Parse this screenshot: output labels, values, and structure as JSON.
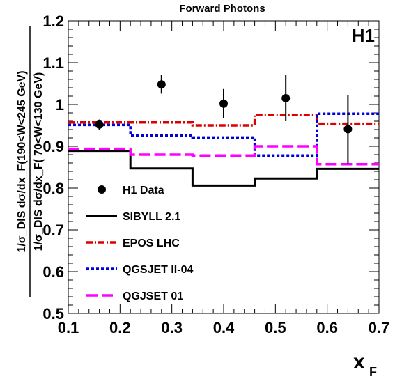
{
  "chart_data": {
    "type": "line",
    "title": "Forward Photons",
    "badge": "H1",
    "xlabel_main": "x",
    "xlabel_sub": "F",
    "ylabel_numerator": "1/σ_DIS dσ/dx_F(190<W<245 GeV)",
    "ylabel_denominator": "1/σ_DIS dσ/dx_F( 70<W<130 GeV)",
    "xlim": [
      0.1,
      0.7
    ],
    "ylim": [
      0.5,
      1.2
    ],
    "x_ticks": [
      "0.1",
      "0.2",
      "0.3",
      "0.4",
      "0.5",
      "0.6",
      "0.7"
    ],
    "y_ticks": [
      "0.5",
      "0.6",
      "0.7",
      "0.8",
      "0.9",
      "1",
      "1.1",
      "1.2"
    ],
    "bin_edges": [
      0.1,
      0.22,
      0.34,
      0.46,
      0.58,
      0.7
    ],
    "data": {
      "name": "H1 Data",
      "color": "#000000",
      "x": [
        0.16,
        0.28,
        0.4,
        0.52,
        0.64
      ],
      "y": [
        0.952,
        1.048,
        1.002,
        1.015,
        0.941
      ],
      "err": [
        0.012,
        0.022,
        0.035,
        0.055,
        0.082
      ]
    },
    "series": [
      {
        "name": "SIBYLL 2.1",
        "color": "#000000",
        "dash": "solid",
        "values": [
          0.889,
          0.847,
          0.806,
          0.823,
          0.846
        ]
      },
      {
        "name": "EPOS LHC",
        "color": "#dd0000",
        "dash": "dashdot",
        "values": [
          0.957,
          0.957,
          0.95,
          0.975,
          0.954
        ]
      },
      {
        "name": "QGSJET II-04",
        "color": "#0000dd",
        "dash": "dotted",
        "values": [
          0.951,
          0.926,
          0.921,
          0.878,
          0.978
        ]
      },
      {
        "name": "QGJSET 01",
        "color": "#ff00ff",
        "dash": "longdash",
        "values": [
          0.894,
          0.88,
          0.878,
          0.9,
          0.857
        ]
      }
    ],
    "legend_position": "bottom-left"
  }
}
